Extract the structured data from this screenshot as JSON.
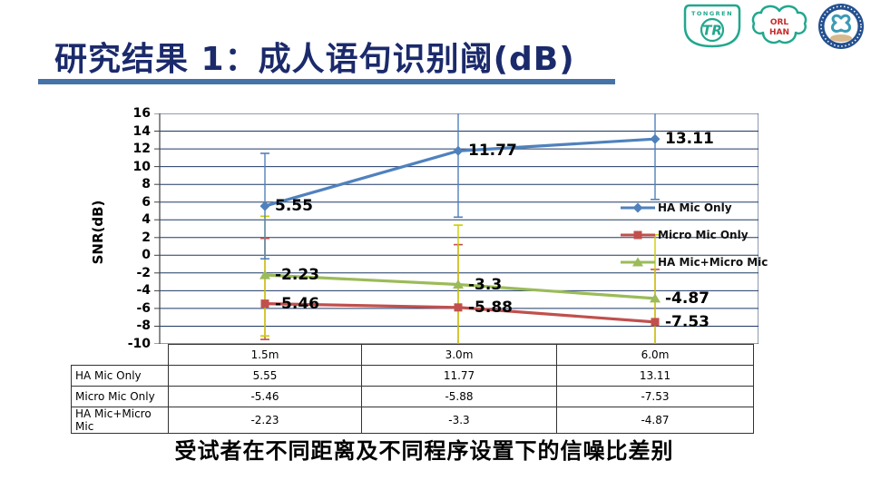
{
  "title": {
    "text": "研究结果 1：成人语句识别阈(dB)"
  },
  "logos": {
    "tongren_text": "TONGREN",
    "tongren_monogram": "TR",
    "orl_line1": "ORL",
    "orl_line2": "HAN"
  },
  "chart_data": {
    "type": "line",
    "title": "",
    "xlabel": "",
    "ylabel": "SNR(dB)",
    "categories": [
      "1.5m",
      "3.0m",
      "6.0m"
    ],
    "ylim": [
      -10,
      16
    ],
    "ytick_step": 2,
    "grid": true,
    "legend_position": "inside-right",
    "series": [
      {
        "name": "HA Mic Only",
        "values": [
          5.55,
          11.77,
          13.11
        ],
        "color": "#4F81BD",
        "marker": "diamond",
        "error_low": [
          -0.4,
          4.3,
          6.3
        ],
        "error_high": [
          11.5,
          16.4,
          16.4
        ],
        "error_color": "#4F81BD"
      },
      {
        "name": "Micro Mic Only",
        "values": [
          -5.46,
          -5.88,
          -7.53
        ],
        "color": "#C0504D",
        "marker": "square",
        "error_low": [
          -9.5,
          -10.4,
          -10.4
        ],
        "error_high": [
          1.9,
          1.2,
          -1.6
        ],
        "error_color": "#C0504D"
      },
      {
        "name": "HA Mic+Micro Mic",
        "values": [
          -2.23,
          -3.3,
          -4.87
        ],
        "color": "#9BBB59",
        "marker": "triangle",
        "error_low": [
          -9.1,
          -10.4,
          -10.4
        ],
        "error_high": [
          4.4,
          3.4,
          2.3
        ],
        "error_color": "#CCCC00"
      }
    ]
  },
  "table": {
    "header": [
      "",
      "1.5m",
      "3.0m",
      "6.0m"
    ],
    "rows": [
      {
        "label": "HA Mic Only",
        "values": [
          "5.55",
          "11.77",
          "13.11"
        ]
      },
      {
        "label": "Micro Mic Only",
        "values": [
          "-5.46",
          "-5.88",
          "-7.53"
        ]
      },
      {
        "label": "HA Mic+Micro Mic",
        "values": [
          "-2.23",
          "-3.3",
          "-4.87"
        ]
      }
    ]
  },
  "caption": "受试者在不同距离及不同程序设置下的信噪比差别",
  "colors": {
    "grid": "#1F3864",
    "axis": "#404040",
    "title": "#1B2A6B",
    "underline": "#4572A7",
    "logo_teal": "#22A78E",
    "logo_red": "#C42B2B",
    "badge_blue": "#24508F",
    "badge_tan": "#D8B98C"
  }
}
